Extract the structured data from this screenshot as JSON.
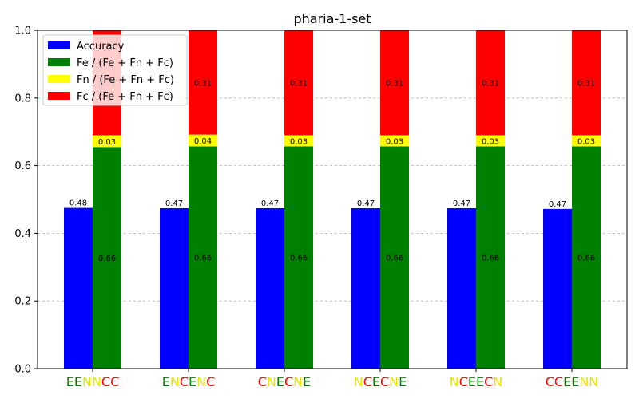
{
  "chart_data": {
    "type": "bar",
    "title": "pharia-1-set",
    "xlabel": "",
    "ylabel": "",
    "ylim": [
      0,
      1.0
    ],
    "yticks": [
      "0.0",
      "0.2",
      "0.4",
      "0.6",
      "0.8",
      "1.0"
    ],
    "grid": "y-dashed",
    "legend_position": "top-left",
    "legend": [
      {
        "label": "Accuracy",
        "color": "#0000ff"
      },
      {
        "label": "Fe / (Fe + Fn + Fc)",
        "color": "#008000"
      },
      {
        "label": "Fn / (Fe + Fn + Fc)",
        "color": "#ffff00"
      },
      {
        "label": "Fc / (Fe + Fn + Fc)",
        "color": "#ff0000"
      }
    ],
    "letter_colors": {
      "E": "#008000",
      "N": "#e6e600",
      "C": "#ff0000"
    },
    "categories": [
      "EENNCC",
      "ENCENC",
      "CNECNE",
      "NCECNE",
      "NCEECN",
      "CCEENN"
    ],
    "accuracy": [
      0.475,
      0.474,
      0.474,
      0.474,
      0.474,
      0.472
    ],
    "accuracy_labels": [
      "0.48",
      "0.47",
      "0.47",
      "0.47",
      "0.47",
      "0.47"
    ],
    "fe": [
      0.655,
      0.657,
      0.657,
      0.657,
      0.657,
      0.657
    ],
    "fe_labels": [
      "0.66",
      "0.66",
      "0.66",
      "0.66",
      "0.66",
      "0.66"
    ],
    "fn": [
      0.035,
      0.035,
      0.033,
      0.033,
      0.033,
      0.033
    ],
    "fn_labels": [
      "0.03",
      "0.04",
      "0.03",
      "0.03",
      "0.03",
      "0.03"
    ],
    "fc": [
      0.31,
      0.308,
      0.31,
      0.31,
      0.31,
      0.31
    ],
    "fc_labels": [
      "0.31",
      "0.31",
      "0.31",
      "0.31",
      "0.31",
      "0.31"
    ]
  }
}
